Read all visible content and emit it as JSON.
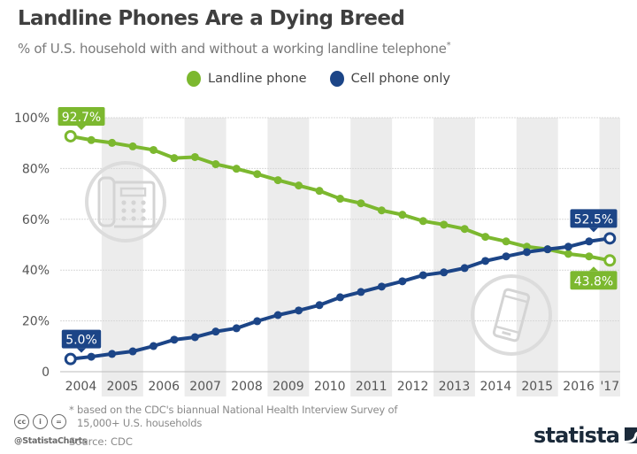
{
  "header": {
    "title": "Landline Phones Are a Dying Breed",
    "subtitle": "% of U.S. household with and without a working landline telephone",
    "subtitle_marker": "*"
  },
  "legend": [
    {
      "label": "Landline phone",
      "color": "#7cb82f"
    },
    {
      "label": "Cell phone only",
      "color": "#1c4587"
    }
  ],
  "footer": {
    "footnote_line1": "* based on the CDC's biannual National Health Interview Survey of",
    "footnote_line2": "15,000+ U.S. households",
    "source": "Source: CDC",
    "handle": "@StatistaCharts",
    "cc_icons": [
      "cc-icon",
      "by-icon",
      "nd-icon"
    ],
    "cc_glyphs": [
      "cc",
      "i",
      "="
    ],
    "logo_text": "statista"
  },
  "colors": {
    "landline": "#7cb82f",
    "cell": "#1c4587",
    "band": "#ececec",
    "grid": "#d8d8d8",
    "axis_text": "#555555",
    "icon_gray": "#dcdcdc"
  },
  "chart_data": {
    "type": "line",
    "title": "Landline Phones Are a Dying Breed",
    "subtitle": "% of U.S. household with and without a working landline telephone*",
    "xlabel": "",
    "ylabel": "",
    "x_period": "half-year (biannual survey)",
    "x": [
      "2004 H1",
      "2004 H2",
      "2005 H1",
      "2005 H2",
      "2006 H1",
      "2006 H2",
      "2007 H1",
      "2007 H2",
      "2008 H1",
      "2008 H2",
      "2009 H1",
      "2009 H2",
      "2010 H1",
      "2010 H2",
      "2011 H1",
      "2011 H2",
      "2012 H1",
      "2012 H2",
      "2013 H1",
      "2013 H2",
      "2014 H1",
      "2014 H2",
      "2015 H1",
      "2015 H2",
      "2016 H1",
      "2016 H2",
      "2017 H1"
    ],
    "x_tick_labels": [
      "2004",
      "2005",
      "2006",
      "2007",
      "2008",
      "2009",
      "2010",
      "2011",
      "2012",
      "2013",
      "2014",
      "2015",
      "2016",
      "'17"
    ],
    "y_tick_labels": [
      "0",
      "20%",
      "40%",
      "60%",
      "80%",
      "100%"
    ],
    "y_ticks": [
      0,
      20,
      40,
      60,
      80,
      100
    ],
    "ylim": [
      0,
      100
    ],
    "grid": true,
    "legend_position": "top-center",
    "series": [
      {
        "name": "Landline phone",
        "color": "#7cb82f",
        "values": [
          92.7,
          91.2,
          90.1,
          88.7,
          87.3,
          84.1,
          84.5,
          81.7,
          79.9,
          77.8,
          75.4,
          73.3,
          71.2,
          68.1,
          66.3,
          63.5,
          61.8,
          59.3,
          57.9,
          56.2,
          53.1,
          51.3,
          49.2,
          48.2,
          46.4,
          45.4,
          43.8
        ]
      },
      {
        "name": "Cell phone only",
        "color": "#1c4587",
        "values": [
          5.0,
          5.9,
          7.0,
          8.0,
          10.1,
          12.6,
          13.6,
          15.8,
          17.1,
          19.9,
          22.3,
          24.1,
          26.2,
          29.3,
          31.4,
          33.5,
          35.6,
          38.0,
          39.1,
          40.8,
          43.6,
          45.4,
          47.1,
          48.2,
          49.2,
          51.3,
          52.5
        ]
      }
    ],
    "annotations": [
      {
        "series": "Landline phone",
        "point": "first",
        "text": "92.7%"
      },
      {
        "series": "Landline phone",
        "point": "last",
        "text": "43.8%"
      },
      {
        "series": "Cell phone only",
        "point": "first",
        "text": "5.0%"
      },
      {
        "series": "Cell phone only",
        "point": "last",
        "text": "52.5%"
      }
    ],
    "decorations": [
      "landline-telephone-icon",
      "smartphone-icon"
    ]
  }
}
